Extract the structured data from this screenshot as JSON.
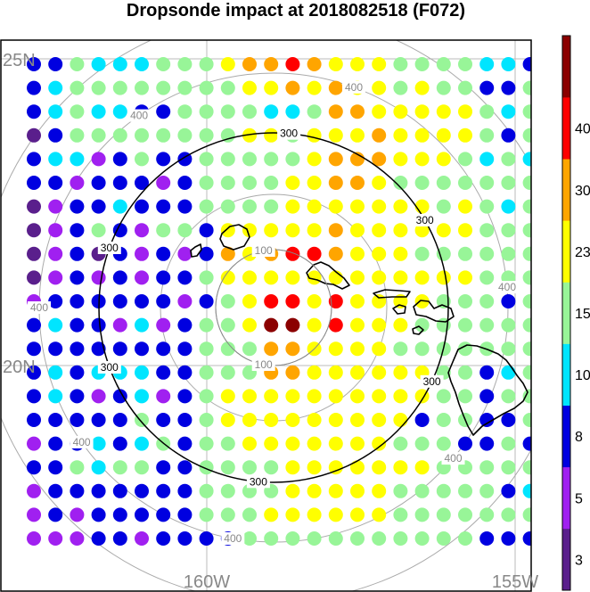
{
  "title": "Dropsonde impact at 2018082518 (F072)",
  "map": {
    "lat_labels": [
      "25N",
      "20N"
    ],
    "lon_labels": [
      "160W",
      "155W"
    ]
  },
  "colorbar": {
    "colors": [
      "#5a1f8c",
      "#a020f0",
      "#0000e0",
      "#00e5ff",
      "#98f598",
      "#ffff00",
      "#ffa500",
      "#ff0000",
      "#8b0000"
    ],
    "tick_labels": [
      "3",
      "5",
      "8",
      "10",
      "15",
      "23",
      "30",
      "40"
    ]
  },
  "contour_colors": {
    "300": "#000000",
    "100": "#888888",
    "400": "#888888"
  },
  "chart_data": {
    "type": "heatmap",
    "title": "Dropsonde impact at 2018082518 (F072)",
    "value_bins": [
      [
        null,
        3
      ],
      [
        3,
        5
      ],
      [
        5,
        8
      ],
      [
        8,
        10
      ],
      [
        10,
        15
      ],
      [
        15,
        23
      ],
      [
        23,
        30
      ],
      [
        30,
        40
      ],
      [
        40,
        null
      ]
    ],
    "contour_levels": [
      100,
      300,
      400
    ],
    "grid_note": "24 x 21 station dots, values given by colour class 0-8",
    "class_rows": [
      "224333444566765554444332",
      "234444444455656554544224",
      "234332244443346655555434",
      "024444444455455565555424",
      "233124224444456665554343",
      "221222124444556654444444",
      "012232224444555555545434",
      "012421442555556555555444",
      "012021212656776555444444",
      "012121224555555555555444",
      "122222212457757555544424",
      "232213124458857555444444",
      "222222224446655554444444",
      "232333224446655555544234",
      "232123124555555555544244",
      "222224224555555555244224",
      "122323424455555554442242",
      "224344224444555555544444",
      "122222224444555554444423",
      "121222224445555554444444",
      "111221222244444444444222"
    ]
  }
}
